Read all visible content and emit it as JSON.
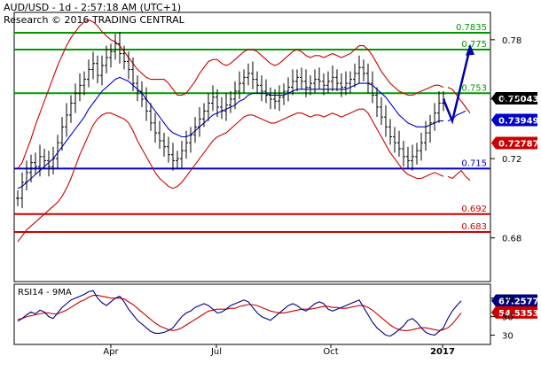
{
  "header": {
    "instrument": "AUD/USD - 1d - 2:57:18 AM (UTC+1)",
    "copyright": "Research © 2016 TRADING CENTRAL"
  },
  "colors": {
    "green": "#009900",
    "blue": "#0000cc",
    "red": "#cc0000",
    "black": "#000000",
    "navy": "#000080",
    "arrow": "#0000aa"
  },
  "chart_data": [
    {
      "type": "line",
      "title": "",
      "x_axis": {
        "type": "date",
        "ticks": [
          "Apr",
          "Jul",
          "Oct",
          "2017"
        ]
      },
      "y_axis": {
        "range": [
          0.666,
          0.792
        ],
        "ticks": [
          0.78,
          0.75,
          0.72,
          0.68
        ],
        "tick_labels": [
          "0.78",
          "0.75",
          "0.72",
          "0.68"
        ]
      },
      "level_lines": [
        {
          "label": "0.7835",
          "value": 0.7835,
          "color": "green"
        },
        {
          "label": "0.775",
          "value": 0.775,
          "color": "green"
        },
        {
          "label": "0.753",
          "value": 0.753,
          "color": "green"
        },
        {
          "label": "0.715",
          "value": 0.715,
          "color": "blue"
        },
        {
          "label": "0.692",
          "value": 0.692,
          "color": "red"
        },
        {
          "label": "0.683",
          "value": 0.683,
          "color": "red"
        }
      ],
      "price_tags": [
        {
          "label": "0.75043",
          "value": 0.75043,
          "fill": "#000000",
          "text": "#ffffff"
        },
        {
          "label": "0.73949",
          "value": 0.73949,
          "fill": "#0000cc",
          "text": "#ffffff"
        },
        {
          "label": "0.72787",
          "value": 0.72787,
          "fill": "#cc0000",
          "text": "#ffffff"
        }
      ],
      "close": [
        0.7,
        0.708,
        0.713,
        0.718,
        0.716,
        0.721,
        0.719,
        0.716,
        0.72,
        0.728,
        0.736,
        0.742,
        0.748,
        0.753,
        0.757,
        0.76,
        0.765,
        0.768,
        0.762,
        0.767,
        0.771,
        0.774,
        0.778,
        0.773,
        0.769,
        0.765,
        0.758,
        0.754,
        0.75,
        0.744,
        0.738,
        0.733,
        0.729,
        0.726,
        0.722,
        0.719,
        0.72,
        0.724,
        0.728,
        0.732,
        0.736,
        0.74,
        0.744,
        0.748,
        0.751,
        0.746,
        0.744,
        0.747,
        0.75,
        0.754,
        0.758,
        0.761,
        0.763,
        0.76,
        0.757,
        0.754,
        0.752,
        0.75,
        0.749,
        0.751,
        0.754,
        0.756,
        0.759,
        0.761,
        0.759,
        0.756,
        0.758,
        0.76,
        0.759,
        0.757,
        0.759,
        0.761,
        0.758,
        0.756,
        0.758,
        0.76,
        0.763,
        0.766,
        0.763,
        0.758,
        0.752,
        0.746,
        0.741,
        0.736,
        0.731,
        0.728,
        0.725,
        0.721,
        0.719,
        0.721,
        0.724,
        0.728,
        0.733,
        0.738,
        0.743,
        0.748,
        0.75
      ],
      "bollinger_upper": [
        0.715,
        0.718,
        0.724,
        0.73,
        0.737,
        0.743,
        0.749,
        0.755,
        0.761,
        0.767,
        0.772,
        0.777,
        0.781,
        0.784,
        0.787,
        0.789,
        0.79,
        0.789,
        0.787,
        0.784,
        0.782,
        0.78,
        0.779,
        0.777,
        0.774,
        0.771,
        0.768,
        0.765,
        0.763,
        0.761,
        0.76,
        0.76,
        0.76,
        0.76,
        0.758,
        0.755,
        0.752,
        0.752,
        0.753,
        0.756,
        0.759,
        0.763,
        0.766,
        0.769,
        0.77,
        0.77,
        0.768,
        0.767,
        0.768,
        0.77,
        0.772,
        0.774,
        0.775,
        0.775,
        0.774,
        0.772,
        0.77,
        0.768,
        0.767,
        0.768,
        0.77,
        0.772,
        0.774,
        0.775,
        0.774,
        0.772,
        0.771,
        0.772,
        0.772,
        0.771,
        0.772,
        0.773,
        0.772,
        0.771,
        0.772,
        0.773,
        0.775,
        0.777,
        0.777,
        0.775,
        0.772,
        0.768,
        0.764,
        0.761,
        0.758,
        0.756,
        0.754,
        0.753,
        0.752,
        0.752,
        0.753,
        0.754,
        0.755,
        0.756,
        0.757,
        0.757,
        0.756
      ],
      "bollinger_lower": [
        0.678,
        0.681,
        0.684,
        0.686,
        0.688,
        0.69,
        0.692,
        0.694,
        0.696,
        0.698,
        0.701,
        0.705,
        0.71,
        0.716,
        0.722,
        0.727,
        0.732,
        0.737,
        0.74,
        0.742,
        0.743,
        0.743,
        0.742,
        0.741,
        0.74,
        0.738,
        0.734,
        0.729,
        0.725,
        0.721,
        0.717,
        0.713,
        0.71,
        0.708,
        0.706,
        0.705,
        0.706,
        0.708,
        0.711,
        0.714,
        0.717,
        0.72,
        0.723,
        0.726,
        0.729,
        0.731,
        0.732,
        0.733,
        0.735,
        0.737,
        0.739,
        0.741,
        0.742,
        0.742,
        0.741,
        0.74,
        0.739,
        0.738,
        0.738,
        0.739,
        0.74,
        0.741,
        0.742,
        0.743,
        0.743,
        0.742,
        0.741,
        0.742,
        0.742,
        0.741,
        0.742,
        0.743,
        0.742,
        0.741,
        0.742,
        0.743,
        0.744,
        0.745,
        0.745,
        0.743,
        0.739,
        0.735,
        0.731,
        0.727,
        0.723,
        0.72,
        0.717,
        0.714,
        0.712,
        0.711,
        0.71,
        0.71,
        0.711,
        0.712,
        0.713,
        0.712,
        0.711
      ],
      "moving_average": [
        0.705,
        0.706,
        0.708,
        0.71,
        0.712,
        0.714,
        0.716,
        0.718,
        0.72,
        0.723,
        0.726,
        0.729,
        0.732,
        0.735,
        0.738,
        0.741,
        0.745,
        0.748,
        0.751,
        0.754,
        0.756,
        0.758,
        0.76,
        0.761,
        0.76,
        0.759,
        0.757,
        0.755,
        0.753,
        0.75,
        0.747,
        0.744,
        0.741,
        0.738,
        0.735,
        0.733,
        0.732,
        0.731,
        0.731,
        0.732,
        0.734,
        0.736,
        0.738,
        0.74,
        0.742,
        0.743,
        0.744,
        0.745,
        0.746,
        0.747,
        0.749,
        0.75,
        0.752,
        0.753,
        0.753,
        0.753,
        0.753,
        0.752,
        0.752,
        0.752,
        0.752,
        0.753,
        0.754,
        0.755,
        0.755,
        0.755,
        0.755,
        0.755,
        0.755,
        0.755,
        0.755,
        0.755,
        0.755,
        0.755,
        0.755,
        0.756,
        0.757,
        0.758,
        0.758,
        0.758,
        0.757,
        0.755,
        0.753,
        0.751,
        0.748,
        0.745,
        0.742,
        0.74,
        0.738,
        0.737,
        0.736,
        0.736,
        0.736,
        0.737,
        0.738,
        0.739,
        0.739
      ],
      "bollinger_upper_ext": [
        0.756,
        0.755,
        0.752,
        0.749,
        0.746,
        0.743
      ],
      "bollinger_lower_ext": [
        0.711,
        0.71,
        0.712,
        0.714,
        0.711,
        0.709
      ],
      "moving_average_ext": [
        0.739,
        0.74,
        0.742,
        0.743,
        0.744
      ],
      "projection_arrow": [
        [
          0.75,
          0.739
        ],
        [
          0.739,
          0.776
        ]
      ]
    },
    {
      "type": "line",
      "title": "RSI14 - 9MA",
      "y_axis": {
        "range": [
          20,
          85
        ],
        "ticks": [
          70,
          50,
          30
        ],
        "tick_labels": [
          "70",
          "50",
          "30"
        ]
      },
      "price_tags": [
        {
          "label": "67.2577",
          "value": 67.2577,
          "fill": "#000080",
          "text": "#ffffff"
        },
        {
          "label": "54.5353",
          "value": 54.5353,
          "fill": "#cc0000",
          "text": "#ffffff"
        }
      ],
      "rsi": [
        45,
        48,
        52,
        55,
        53,
        57,
        55,
        50,
        48,
        54,
        60,
        64,
        68,
        70,
        72,
        74,
        77,
        78,
        70,
        65,
        62,
        66,
        70,
        72,
        66,
        58,
        52,
        46,
        42,
        38,
        34,
        32,
        32,
        33,
        35,
        38,
        44,
        50,
        54,
        56,
        60,
        62,
        64,
        62,
        58,
        54,
        55,
        58,
        62,
        64,
        66,
        68,
        66,
        60,
        54,
        50,
        48,
        46,
        50,
        54,
        58,
        62,
        64,
        62,
        58,
        56,
        60,
        64,
        66,
        64,
        58,
        56,
        58,
        60,
        62,
        64,
        66,
        68,
        60,
        52,
        44,
        38,
        34,
        30,
        29,
        32,
        36,
        40,
        46,
        48,
        44,
        38,
        33,
        31,
        30,
        34,
        38,
        48,
        56,
        62,
        67
      ],
      "rsi_ma": [
        47,
        48,
        50,
        51,
        52,
        53,
        54,
        54,
        53,
        53,
        55,
        57,
        60,
        63,
        66,
        68,
        71,
        73,
        73,
        72,
        71,
        70,
        70,
        70,
        69,
        66,
        63,
        59,
        55,
        51,
        47,
        43,
        40,
        38,
        36,
        35,
        36,
        38,
        41,
        44,
        47,
        50,
        53,
        56,
        57,
        58,
        58,
        58,
        59,
        59,
        61,
        62,
        63,
        63,
        62,
        60,
        58,
        56,
        55,
        54,
        54,
        55,
        56,
        57,
        58,
        58,
        58,
        59,
        60,
        61,
        61,
        60,
        60,
        59,
        59,
        60,
        61,
        62,
        62,
        60,
        57,
        53,
        49,
        45,
        41,
        38,
        36,
        35,
        35,
        36,
        37,
        38,
        38,
        37,
        36,
        35,
        36,
        38,
        42,
        48,
        54
      ]
    }
  ]
}
